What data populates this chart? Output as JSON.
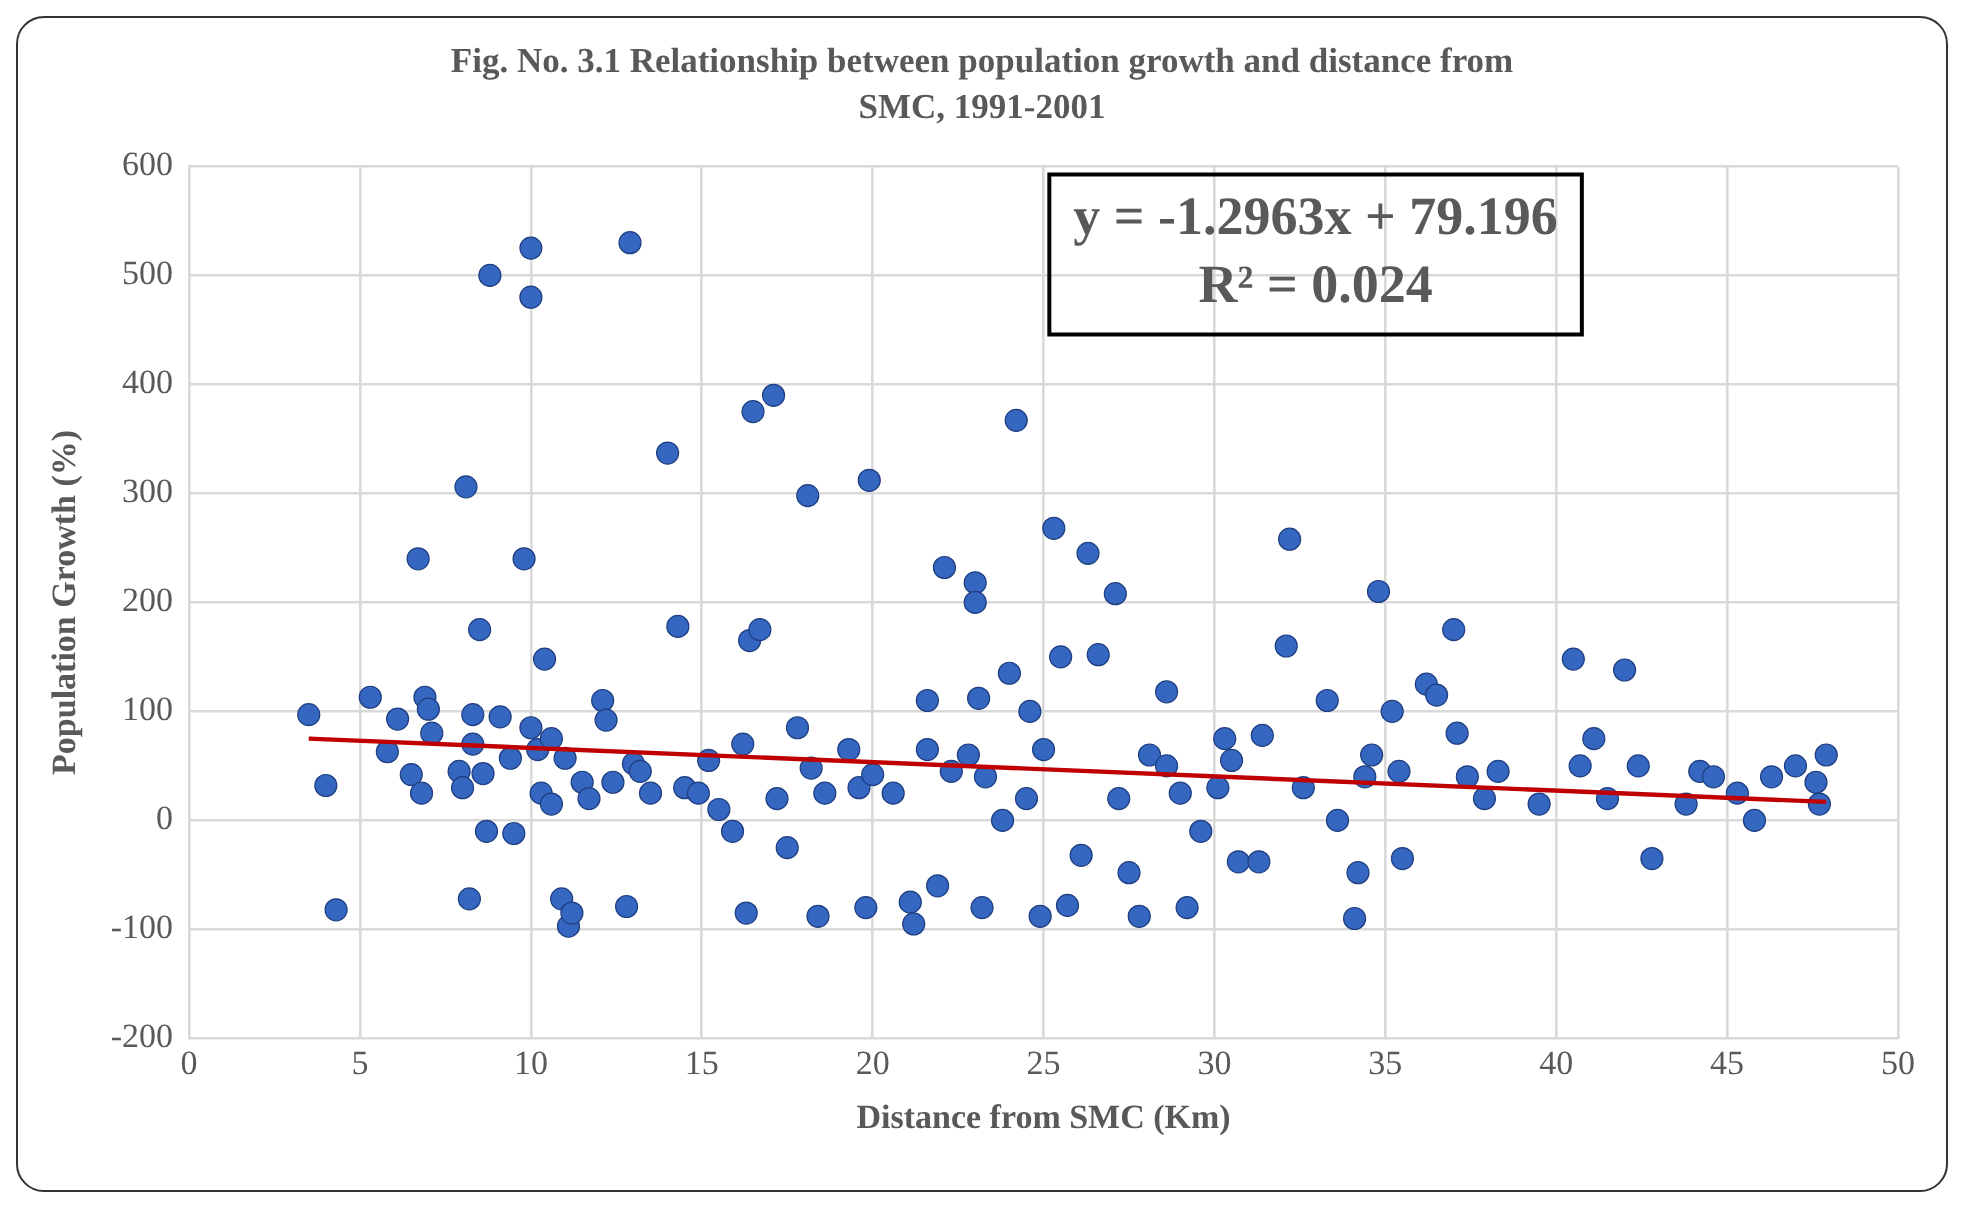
{
  "chart_data": {
    "type": "scatter",
    "title": "Fig. No. 3.1 Relationship between population growth and distance from SMC, 1991-2001",
    "xlabel": "Distance from SMC (Km)",
    "ylabel": "Population Growth (%)",
    "annotations": [
      "y = -1.2963x + 79.196",
      "R² = 0.024"
    ],
    "xlim": [
      0,
      50
    ],
    "xticks": [
      0,
      5,
      10,
      15,
      20,
      25,
      30,
      35,
      40,
      45,
      50
    ],
    "ylim": [
      -200,
      600
    ],
    "yticks": [
      -200,
      -100,
      0,
      100,
      200,
      300,
      400,
      500,
      600
    ],
    "grid": true,
    "legend": false,
    "marker": "circle",
    "series": [
      {
        "color": "#3566c0",
        "x": [
          3.5,
          4,
          4.3,
          5.3,
          5.8,
          6.1,
          6.5,
          6.7,
          6.8,
          6.9,
          7,
          7.1,
          7.9,
          8,
          8.1,
          8.2,
          8.3,
          8.3,
          8.5,
          8.6,
          8.7,
          8.8,
          9.1,
          9.4,
          9.5,
          9.8,
          10,
          10,
          10,
          10.2,
          10.3,
          10.4,
          10.6,
          10.6,
          10.9,
          11,
          11.1,
          11.2,
          11.5,
          11.7,
          12.1,
          12.2,
          12.4,
          12.8,
          12.9,
          13,
          13.2,
          13.5,
          14,
          14.3,
          14.5,
          14.9,
          15.2,
          15.5,
          15.9,
          16.2,
          16.3,
          16.4,
          16.5,
          16.7,
          17.1,
          17.2,
          17.5,
          17.8,
          18.1,
          18.2,
          18.4,
          18.6,
          19.3,
          19.6,
          19.8,
          19.9,
          20,
          20.6,
          21.1,
          21.2,
          21.6,
          21.6,
          21.9,
          22.1,
          22.3,
          22.8,
          23,
          23,
          23.1,
          23.2,
          23.3,
          23.8,
          24,
          24.2,
          24.5,
          24.6,
          24.9,
          25,
          25.3,
          25.5,
          25.7,
          26.1,
          26.3,
          26.6,
          27.1,
          27.2,
          27.5,
          27.8,
          28.1,
          28.6,
          28.6,
          29,
          29.2,
          29.6,
          30.1,
          30.3,
          30.5,
          30.7,
          31.3,
          31.4,
          32.1,
          32.2,
          32.6,
          33.3,
          33.6,
          34.1,
          34.2,
          34.4,
          34.6,
          34.8,
          35.2,
          35.4,
          35.5,
          36.2,
          36.5,
          37,
          37.1,
          37.4,
          37.9,
          38.3,
          39.5,
          40.5,
          40.7,
          41.1,
          41.5,
          42,
          42.4,
          42.8,
          43.8,
          44.2,
          44.6,
          45.3,
          45.8,
          46.3,
          47,
          47.6,
          47.9,
          47.7
        ],
        "values": [
          97,
          32,
          -82,
          113,
          63,
          93,
          42,
          240,
          25,
          113,
          102,
          80,
          45,
          30,
          306,
          -72,
          97,
          70,
          175,
          43,
          -10,
          500,
          95,
          57,
          -12,
          240,
          525,
          480,
          85,
          65,
          25,
          148,
          75,
          15,
          -72,
          57,
          -97,
          -85,
          35,
          20,
          110,
          92,
          35,
          -79,
          530,
          52,
          45,
          25,
          337,
          178,
          30,
          25,
          55,
          10,
          -10,
          70,
          -85,
          165,
          375,
          175,
          390,
          20,
          -25,
          85,
          298,
          48,
          -88,
          25,
          65,
          30,
          -80,
          312,
          42,
          25,
          -75,
          -95,
          110,
          65,
          -60,
          232,
          45,
          60,
          218,
          200,
          112,
          -80,
          40,
          0,
          135,
          367,
          20,
          100,
          -88,
          65,
          268,
          150,
          -78,
          -32,
          245,
          152,
          208,
          20,
          -48,
          -88,
          60,
          118,
          50,
          25,
          -80,
          -10,
          30,
          75,
          55,
          -38,
          -38,
          78,
          160,
          258,
          30,
          110,
          0,
          -90,
          -48,
          40,
          60,
          210,
          100,
          45,
          -35,
          125,
          115,
          175,
          80,
          40,
          20,
          45,
          15,
          148,
          50,
          75,
          20,
          138,
          50,
          -35,
          15,
          45,
          40,
          25,
          0,
          40,
          50,
          35,
          60,
          15
        ]
      },
      {
        "type": "line",
        "color": "#c00000",
        "marker": "none",
        "x": [
          3.5,
          47.9
        ],
        "values": [
          75,
          17
        ]
      }
    ]
  }
}
